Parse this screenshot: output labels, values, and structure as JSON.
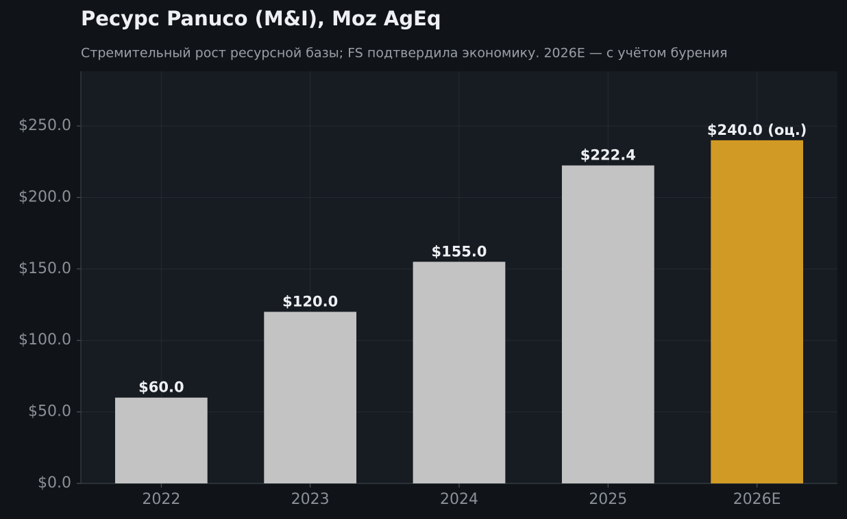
{
  "chart_data": {
    "type": "bar",
    "title": "Ресурс Panuco (M&I), Moz AgEq",
    "subtitle": "Стремительный рост ресурсной базы; FS подтвердила экономику. 2026E — с учётом бурения",
    "categories": [
      "2022",
      "2023",
      "2024",
      "2025",
      "2026E"
    ],
    "values": [
      60.0,
      120.0,
      155.0,
      222.4,
      240.0
    ],
    "value_labels": [
      "$60.0",
      "$120.0",
      "$155.0",
      "$222.4",
      "$240.0 (оц.)"
    ],
    "colors": [
      "#c3c3c3",
      "#c3c3c3",
      "#c3c3c3",
      "#c3c3c3",
      "#d19a24"
    ],
    "ylim": [
      0,
      288.3
    ],
    "yticks": [
      {
        "value": 0,
        "label": "$0.0"
      },
      {
        "value": 50,
        "label": "$50.0"
      },
      {
        "value": 100,
        "label": "$100.0"
      },
      {
        "value": 150,
        "label": "$150.0"
      },
      {
        "value": 200,
        "label": "$200.0"
      },
      {
        "value": 250,
        "label": "$250.0"
      }
    ],
    "grid": true
  }
}
